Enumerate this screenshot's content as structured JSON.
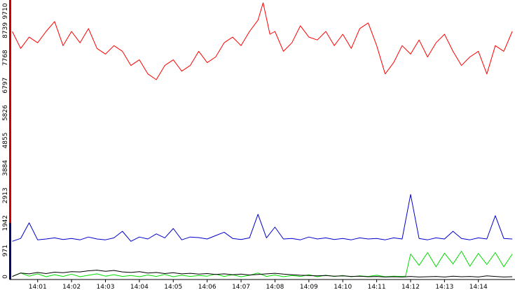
{
  "chart_data": {
    "type": "line",
    "title": "",
    "xlabel": "",
    "ylabel": "",
    "ylim": [
      0,
      9710
    ],
    "grid": false,
    "y_ticks": [
      "0",
      "971",
      "1942",
      "2913",
      "3884",
      "4855",
      "5826",
      "6797",
      "7768",
      "8739",
      "9710"
    ],
    "y_tick_values": [
      0,
      971,
      1942,
      2913,
      3884,
      4855,
      5826,
      6797,
      7768,
      8739,
      9710
    ],
    "x_ticks": [
      "14:01",
      "14:02",
      "14:03",
      "14:04",
      "14:05",
      "14:06",
      "14:07",
      "14:08",
      "14:09",
      "14:10",
      "14:11",
      "14:12",
      "14:13",
      "14:14"
    ],
    "x_range_minutes": [
      0.22,
      15.08
    ],
    "series": [
      {
        "color": "#ff0000",
        "summary": {
          "low": 6500,
          "high": 9710,
          "typical": 8100
        },
        "values": [
          [
            0.25,
            8700
          ],
          [
            0.5,
            8100
          ],
          [
            0.75,
            8500
          ],
          [
            1.0,
            8300
          ],
          [
            1.25,
            8700
          ],
          [
            1.5,
            9050
          ],
          [
            1.75,
            8200
          ],
          [
            2.0,
            8700
          ],
          [
            2.25,
            8300
          ],
          [
            2.5,
            8800
          ],
          [
            2.75,
            8100
          ],
          [
            3.0,
            7900
          ],
          [
            3.25,
            8200
          ],
          [
            3.5,
            8000
          ],
          [
            3.75,
            7500
          ],
          [
            4.0,
            7700
          ],
          [
            4.25,
            7200
          ],
          [
            4.5,
            7000
          ],
          [
            4.75,
            7500
          ],
          [
            5.0,
            7700
          ],
          [
            5.25,
            7300
          ],
          [
            5.5,
            7500
          ],
          [
            5.75,
            8000
          ],
          [
            6.0,
            7600
          ],
          [
            6.25,
            7800
          ],
          [
            6.5,
            8300
          ],
          [
            6.75,
            8500
          ],
          [
            7.0,
            8200
          ],
          [
            7.25,
            8700
          ],
          [
            7.5,
            9100
          ],
          [
            7.65,
            9710
          ],
          [
            7.85,
            8600
          ],
          [
            8.0,
            8700
          ],
          [
            8.25,
            8000
          ],
          [
            8.5,
            8300
          ],
          [
            8.75,
            8900
          ],
          [
            9.0,
            8500
          ],
          [
            9.25,
            8400
          ],
          [
            9.5,
            8700
          ],
          [
            9.75,
            8200
          ],
          [
            10.0,
            8600
          ],
          [
            10.25,
            8100
          ],
          [
            10.5,
            8800
          ],
          [
            10.75,
            9000
          ],
          [
            11.0,
            8200
          ],
          [
            11.25,
            7200
          ],
          [
            11.5,
            7600
          ],
          [
            11.75,
            8200
          ],
          [
            12.0,
            7900
          ],
          [
            12.25,
            8400
          ],
          [
            12.5,
            7800
          ],
          [
            12.75,
            8300
          ],
          [
            13.0,
            8600
          ],
          [
            13.25,
            8000
          ],
          [
            13.5,
            7500
          ],
          [
            13.75,
            7800
          ],
          [
            14.0,
            8000
          ],
          [
            14.25,
            7200
          ],
          [
            14.5,
            8200
          ],
          [
            14.75,
            8000
          ],
          [
            15.0,
            8700
          ]
        ]
      },
      {
        "color": "#0000cc",
        "summary": {
          "low": 1200,
          "high": 3000,
          "typical": 1400
        },
        "values": [
          [
            0.25,
            1300
          ],
          [
            0.5,
            1400
          ],
          [
            0.75,
            1950
          ],
          [
            1.0,
            1350
          ],
          [
            1.25,
            1380
          ],
          [
            1.5,
            1420
          ],
          [
            1.75,
            1360
          ],
          [
            2.0,
            1400
          ],
          [
            2.25,
            1350
          ],
          [
            2.5,
            1450
          ],
          [
            2.75,
            1380
          ],
          [
            3.0,
            1350
          ],
          [
            3.25,
            1420
          ],
          [
            3.5,
            1650
          ],
          [
            3.75,
            1300
          ],
          [
            4.0,
            1450
          ],
          [
            4.25,
            1380
          ],
          [
            4.5,
            1560
          ],
          [
            4.75,
            1420
          ],
          [
            5.0,
            1750
          ],
          [
            5.25,
            1350
          ],
          [
            5.5,
            1450
          ],
          [
            5.75,
            1430
          ],
          [
            6.0,
            1380
          ],
          [
            6.25,
            1500
          ],
          [
            6.5,
            1620
          ],
          [
            6.75,
            1400
          ],
          [
            7.0,
            1360
          ],
          [
            7.25,
            1420
          ],
          [
            7.5,
            2250
          ],
          [
            7.75,
            1420
          ],
          [
            8.0,
            1800
          ],
          [
            8.25,
            1380
          ],
          [
            8.5,
            1400
          ],
          [
            8.75,
            1350
          ],
          [
            9.0,
            1450
          ],
          [
            9.25,
            1380
          ],
          [
            9.5,
            1420
          ],
          [
            9.75,
            1360
          ],
          [
            10.0,
            1400
          ],
          [
            10.25,
            1350
          ],
          [
            10.5,
            1420
          ],
          [
            10.75,
            1380
          ],
          [
            11.0,
            1400
          ],
          [
            11.25,
            1350
          ],
          [
            11.5,
            1420
          ],
          [
            11.75,
            1380
          ],
          [
            12.0,
            2950
          ],
          [
            12.25,
            1400
          ],
          [
            12.5,
            1350
          ],
          [
            12.75,
            1420
          ],
          [
            13.0,
            1380
          ],
          [
            13.25,
            1650
          ],
          [
            13.5,
            1400
          ],
          [
            13.75,
            1350
          ],
          [
            14.0,
            1420
          ],
          [
            14.25,
            1380
          ],
          [
            14.5,
            2200
          ],
          [
            14.75,
            1400
          ],
          [
            15.0,
            1380
          ]
        ]
      },
      {
        "color": "#00dd00",
        "summary": {
          "low": 0,
          "high": 1000,
          "typical": 600
        },
        "values": [
          [
            0.25,
            60
          ],
          [
            0.5,
            180
          ],
          [
            0.75,
            70
          ],
          [
            1.0,
            150
          ],
          [
            1.25,
            50
          ],
          [
            1.5,
            120
          ],
          [
            1.75,
            60
          ],
          [
            2.0,
            140
          ],
          [
            2.25,
            50
          ],
          [
            2.5,
            100
          ],
          [
            2.75,
            150
          ],
          [
            3.0,
            70
          ],
          [
            3.25,
            120
          ],
          [
            3.5,
            60
          ],
          [
            3.75,
            90
          ],
          [
            4.0,
            50
          ],
          [
            4.25,
            110
          ],
          [
            4.5,
            60
          ],
          [
            4.75,
            130
          ],
          [
            5.0,
            50
          ],
          [
            5.25,
            100
          ],
          [
            5.5,
            60
          ],
          [
            5.75,
            90
          ],
          [
            6.0,
            70
          ],
          [
            6.25,
            140
          ],
          [
            6.5,
            60
          ],
          [
            6.75,
            120
          ],
          [
            7.0,
            50
          ],
          [
            7.25,
            100
          ],
          [
            7.5,
            180
          ],
          [
            7.75,
            60
          ],
          [
            8.0,
            110
          ],
          [
            8.25,
            50
          ],
          [
            8.5,
            90
          ],
          [
            8.75,
            60
          ],
          [
            9.0,
            120
          ],
          [
            9.25,
            50
          ],
          [
            9.5,
            100
          ],
          [
            9.75,
            60
          ],
          [
            10.0,
            90
          ],
          [
            10.25,
            50
          ],
          [
            10.5,
            80
          ],
          [
            10.75,
            60
          ],
          [
            11.0,
            100
          ],
          [
            11.25,
            50
          ],
          [
            11.5,
            70
          ],
          [
            11.75,
            60
          ],
          [
            11.85,
            60
          ],
          [
            12.0,
            850
          ],
          [
            12.25,
            450
          ],
          [
            12.5,
            900
          ],
          [
            12.75,
            400
          ],
          [
            13.0,
            880
          ],
          [
            13.25,
            500
          ],
          [
            13.5,
            950
          ],
          [
            13.75,
            420
          ],
          [
            14.0,
            870
          ],
          [
            14.25,
            480
          ],
          [
            14.5,
            900
          ],
          [
            14.75,
            400
          ],
          [
            15.0,
            850
          ]
        ]
      },
      {
        "color": "#000000",
        "summary": {
          "low": 0,
          "high": 300,
          "typical": 120
        },
        "values": [
          [
            0.25,
            60
          ],
          [
            0.5,
            180
          ],
          [
            0.75,
            150
          ],
          [
            1.0,
            200
          ],
          [
            1.25,
            160
          ],
          [
            1.5,
            210
          ],
          [
            1.75,
            190
          ],
          [
            2.0,
            230
          ],
          [
            2.25,
            220
          ],
          [
            2.5,
            260
          ],
          [
            2.75,
            280
          ],
          [
            3.0,
            240
          ],
          [
            3.25,
            270
          ],
          [
            3.5,
            220
          ],
          [
            3.75,
            200
          ],
          [
            4.0,
            230
          ],
          [
            4.25,
            180
          ],
          [
            4.5,
            200
          ],
          [
            4.75,
            160
          ],
          [
            5.0,
            190
          ],
          [
            5.25,
            150
          ],
          [
            5.5,
            170
          ],
          [
            5.75,
            140
          ],
          [
            6.0,
            160
          ],
          [
            6.25,
            130
          ],
          [
            6.5,
            150
          ],
          [
            6.75,
            120
          ],
          [
            7.0,
            140
          ],
          [
            7.25,
            110
          ],
          [
            7.5,
            130
          ],
          [
            7.75,
            150
          ],
          [
            8.0,
            170
          ],
          [
            8.25,
            140
          ],
          [
            8.5,
            120
          ],
          [
            8.75,
            100
          ],
          [
            9.0,
            90
          ],
          [
            9.25,
            80
          ],
          [
            9.5,
            90
          ],
          [
            9.75,
            70
          ],
          [
            10.0,
            80
          ],
          [
            10.25,
            60
          ],
          [
            10.5,
            70
          ],
          [
            10.75,
            50
          ],
          [
            11.0,
            60
          ],
          [
            11.25,
            40
          ],
          [
            11.5,
            50
          ],
          [
            11.75,
            40
          ],
          [
            12.0,
            60
          ],
          [
            12.25,
            40
          ],
          [
            12.5,
            50
          ],
          [
            12.75,
            60
          ],
          [
            13.0,
            40
          ],
          [
            13.25,
            70
          ],
          [
            13.5,
            50
          ],
          [
            13.75,
            60
          ],
          [
            14.0,
            40
          ],
          [
            14.25,
            80
          ],
          [
            14.5,
            60
          ],
          [
            14.75,
            40
          ],
          [
            15.0,
            50
          ]
        ]
      }
    ],
    "axis_strip_color": "#cc0000",
    "axis_strip_fill_color": "#000066"
  }
}
